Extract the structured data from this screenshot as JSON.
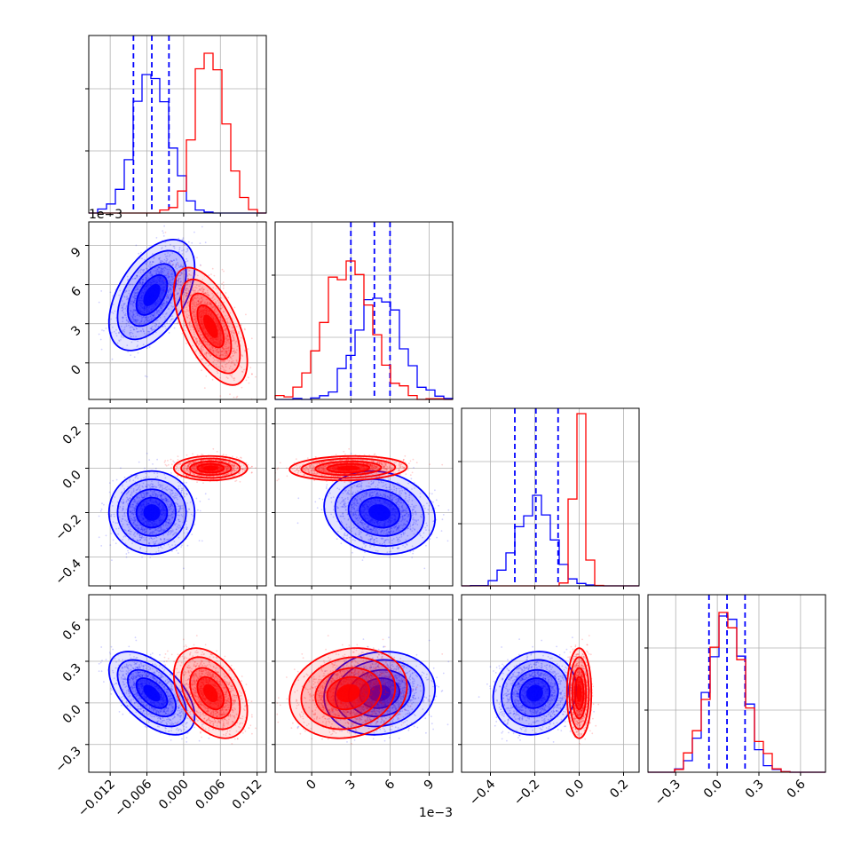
{
  "chart_data": {
    "type": "corner",
    "n_params": 4,
    "colors": {
      "blue": "#0000ff",
      "red": "#ff0000",
      "grid": "#b0b0b0",
      "axis": "#000000"
    },
    "grid": true,
    "params": [
      {
        "range": [
          -0.0155,
          0.0135
        ],
        "tick_values": [
          -0.012,
          -0.006,
          0.0,
          0.006,
          0.012
        ],
        "tick_labels": [
          "−0.012",
          "−0.006",
          "0.000",
          "0.006",
          "0.012"
        ],
        "offset_text": ""
      },
      {
        "range": [
          -0.0028,
          0.0108
        ],
        "tick_values": [
          0.0,
          0.003,
          0.006,
          0.009
        ],
        "tick_labels": [
          "0",
          "3",
          "6",
          "9"
        ],
        "offset_text": "1e−3"
      },
      {
        "range": [
          -0.53,
          0.27
        ],
        "tick_values": [
          -0.4,
          -0.2,
          0.0,
          0.2
        ],
        "tick_labels": [
          "−0.4",
          "−0.2",
          "0.0",
          "0.2"
        ],
        "offset_text": ""
      },
      {
        "range": [
          -0.5,
          0.78
        ],
        "tick_values": [
          -0.3,
          0.0,
          0.3,
          0.6
        ],
        "tick_labels": [
          "−0.3",
          "0.0",
          "0.3",
          "0.6"
        ],
        "offset_text": ""
      }
    ],
    "row_offset_text": {
      "row1": "1e−3"
    },
    "series": [
      {
        "color": "blue",
        "mean": [
          -0.0052,
          0.0052,
          -0.2,
          0.07
        ],
        "std": [
          0.0028,
          0.0017,
          0.075,
          0.12
        ],
        "corr": [
          [
            1,
            0.5,
            0.0,
            -0.55
          ],
          [
            0.5,
            1,
            -0.15,
            0.1
          ],
          [
            0.0,
            -0.15,
            1,
            0.1
          ],
          [
            -0.55,
            0.1,
            0.1,
            1
          ]
        ],
        "quantiles": [
          [
            -0.0082,
            -0.0052,
            -0.0024
          ],
          [
            0.003,
            0.0048,
            0.006
          ],
          [
            -0.29,
            -0.195,
            -0.095
          ],
          [
            -0.06,
            0.07,
            0.2
          ]
        ],
        "hist_peak": [
          0.78,
          0.57,
          0.51,
          0.88
        ]
      },
      {
        "color": "red",
        "mean": [
          0.0044,
          0.0028,
          0.0,
          0.07
        ],
        "std": [
          0.0024,
          0.0018,
          0.022,
          0.13
        ],
        "corr": [
          [
            1,
            -0.6,
            0.0,
            -0.4
          ],
          [
            -0.6,
            1,
            0.1,
            0.15
          ],
          [
            0.0,
            0.1,
            1,
            0.0
          ],
          [
            -0.4,
            0.15,
            0.0,
            1
          ]
        ],
        "hist_peak": [
          0.9,
          0.78,
          0.97,
          0.9
        ]
      }
    ]
  }
}
